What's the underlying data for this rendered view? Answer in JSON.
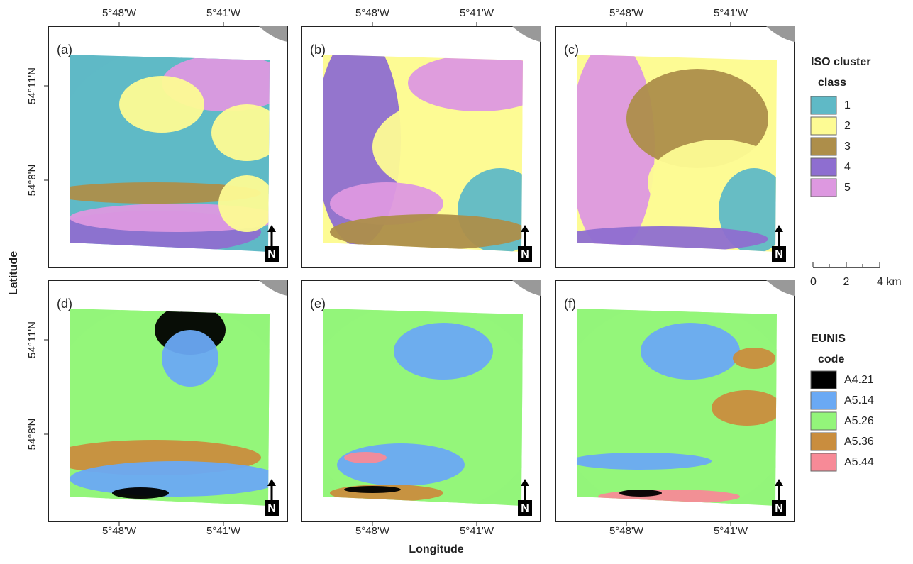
{
  "axes": {
    "x_label": "Longitude",
    "y_label": "Latitude",
    "x_ticks": [
      "5°48'W",
      "5°41'W"
    ],
    "y_ticks": [
      "54°11'N",
      "54°8'N"
    ]
  },
  "panels": [
    {
      "label": "(a)"
    },
    {
      "label": "(b)"
    },
    {
      "label": "(c)"
    },
    {
      "label": "(d)"
    },
    {
      "label": "(e)"
    },
    {
      "label": "(f)"
    }
  ],
  "north_label": "N",
  "legends": [
    {
      "title": [
        "ISO cluster",
        "class"
      ],
      "items": [
        {
          "label": "1",
          "color": "#5fb9c6"
        },
        {
          "label": "2",
          "color": "#fdfb94"
        },
        {
          "label": "3",
          "color": "#ad8e4a"
        },
        {
          "label": "4",
          "color": "#8e6ed0"
        },
        {
          "label": "5",
          "color": "#dd98e0"
        }
      ]
    },
    {
      "title": [
        "EUNIS",
        "code"
      ],
      "items": [
        {
          "label": "A4.21",
          "color": "#000000"
        },
        {
          "label": "A5.14",
          "color": "#6aa9f4"
        },
        {
          "label": "A5.26",
          "color": "#93f57a"
        },
        {
          "label": "A5.36",
          "color": "#c98d3e"
        },
        {
          "label": "A5.44",
          "color": "#f78a97"
        }
      ]
    }
  ],
  "scale_bar": {
    "labels": [
      "0",
      "2",
      "4 km"
    ]
  }
}
